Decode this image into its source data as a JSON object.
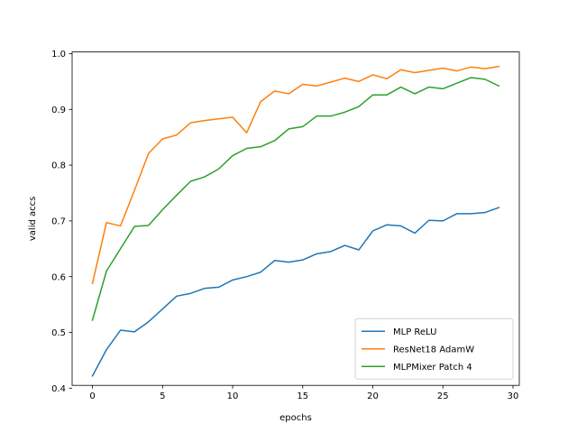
{
  "chart_data": {
    "type": "line",
    "title": "",
    "xlabel": "epochs",
    "ylabel": "valid accs",
    "xlim": [
      -1.45,
      30.45
    ],
    "ylim": [
      0.405,
      1.003
    ],
    "xticks": [
      0,
      5,
      10,
      15,
      20,
      25,
      30
    ],
    "yticks": [
      0.4,
      0.5,
      0.6,
      0.7,
      0.8,
      0.9,
      1.0
    ],
    "xtick_labels": [
      "0",
      "5",
      "10",
      "15",
      "20",
      "25",
      "30"
    ],
    "ytick_labels": [
      "0.4",
      "0.5",
      "0.6",
      "0.7",
      "0.8",
      "0.9",
      "1.0"
    ],
    "grid": false,
    "legend_position": "lower-right",
    "x": [
      0,
      1,
      2,
      3,
      4,
      5,
      6,
      7,
      8,
      9,
      10,
      11,
      12,
      13,
      14,
      15,
      16,
      17,
      18,
      19,
      20,
      21,
      22,
      23,
      24,
      25,
      26,
      27,
      28,
      29
    ],
    "series": [
      {
        "name": "MLP ReLU",
        "color": "#1f77b4",
        "values": [
          0.422,
          0.469,
          0.504,
          0.501,
          0.519,
          0.542,
          0.565,
          0.57,
          0.579,
          0.581,
          0.594,
          0.6,
          0.608,
          0.629,
          0.626,
          0.63,
          0.641,
          0.645,
          0.656,
          0.648,
          0.682,
          0.693,
          0.691,
          0.678,
          0.701,
          0.7,
          0.713,
          0.713,
          0.715,
          0.724
        ]
      },
      {
        "name": "ResNet18 AdamW",
        "color": "#ff7f0e",
        "values": [
          0.588,
          0.697,
          0.691,
          0.755,
          0.821,
          0.847,
          0.854,
          0.876,
          0.88,
          0.883,
          0.886,
          0.858,
          0.914,
          0.933,
          0.928,
          0.945,
          0.942,
          0.949,
          0.956,
          0.95,
          0.962,
          0.955,
          0.971,
          0.966,
          0.97,
          0.974,
          0.969,
          0.976,
          0.973,
          0.977
        ]
      },
      {
        "name": "MLPMixer Patch 4",
        "color": "#2ca02c",
        "values": [
          0.522,
          0.61,
          0.65,
          0.69,
          0.692,
          0.72,
          0.746,
          0.771,
          0.779,
          0.793,
          0.817,
          0.83,
          0.833,
          0.844,
          0.865,
          0.869,
          0.888,
          0.888,
          0.895,
          0.905,
          0.926,
          0.926,
          0.94,
          0.928,
          0.94,
          0.937,
          0.947,
          0.957,
          0.954,
          0.942
        ]
      }
    ]
  }
}
